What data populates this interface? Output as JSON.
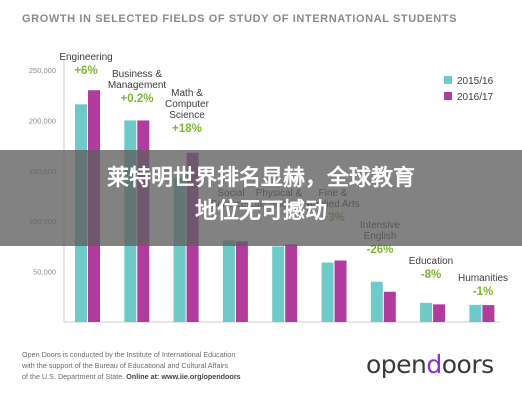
{
  "chart_data": {
    "type": "bar",
    "title": "GROWTH IN SELECTED FIELDS OF STUDY OF INTERNATIONAL STUDENTS",
    "xlabel": "",
    "ylabel": "",
    "ylim": [
      0,
      260000
    ],
    "yticks": [
      "0",
      "50,000",
      "100,000",
      "150,000",
      "200,000",
      "250,000"
    ],
    "grid": false,
    "legend_position": "top-right",
    "categories": [
      [
        "Engineering"
      ],
      [
        "Business &",
        "Management"
      ],
      [
        "Math &",
        "Computer",
        "Science"
      ],
      [
        "Social",
        "Sciences"
      ],
      [
        "Physical &",
        "Life Sciences"
      ],
      [
        "Fine &",
        "Applied Arts"
      ],
      [
        "Intensive",
        "English"
      ],
      [
        "Education"
      ],
      [
        "Humanities"
      ]
    ],
    "changes": [
      "+6%",
      "+0.2%",
      "+18%",
      "",
      "",
      "+3%",
      "-26%",
      "-8%",
      "-1%"
    ],
    "series": [
      {
        "name": "2015/16",
        "color": "#6ecac8",
        "values": [
          216000,
          200000,
          143000,
          81000,
          75000,
          59000,
          40000,
          19000,
          17000
        ]
      },
      {
        "name": "2016/17",
        "color": "#b23b9e",
        "values": [
          230000,
          200000,
          168000,
          80000,
          77000,
          61000,
          30000,
          17500,
          16800
        ]
      }
    ]
  },
  "footer": {
    "lines": [
      "Open Doors is conducted by the Institute of International Education",
      "with the support of the Bureau of Educational and Cultural Affairs"
    ],
    "last_line_prefix": "of the U.S. Department of State. ",
    "last_line_bold": "Online at: www.iie.org/opendoors"
  },
  "logo": {
    "part1": "open",
    "accent": "d",
    "part2": "oors"
  },
  "overlay": {
    "line1": "莱特明世界排名显赫，全球教育",
    "line2": "地位无可撼动"
  },
  "colors": {
    "change_label": "#7ab834",
    "axis": "#cfcfcf",
    "tick_text": "#8a8a8a",
    "category_text": "#3c3c3c"
  }
}
